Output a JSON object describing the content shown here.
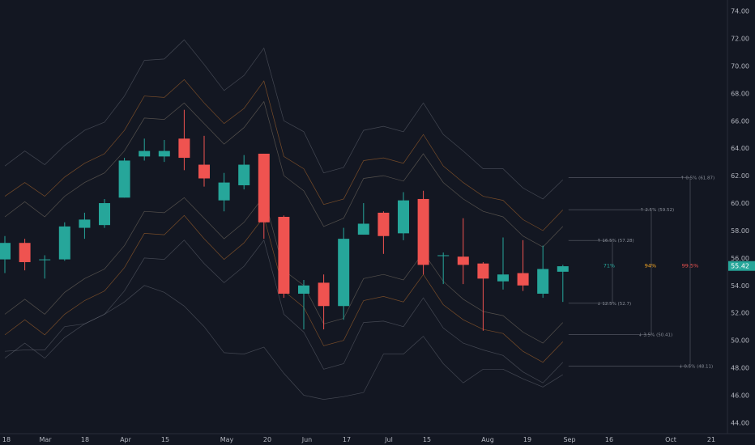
{
  "chart_data": {
    "type": "candlestick",
    "colors": {
      "up": "#26a69a",
      "down": "#ef5350",
      "background": "#131722",
      "band_outer": "#6b6f7a",
      "band_mid": "#c9772e",
      "band_inner": "#8a8070",
      "grid": "#1e222d",
      "axis_text": "#b2b5be",
      "last_price_bg": "#26a69a"
    },
    "y_axis": {
      "range": [
        43.2,
        74.8
      ],
      "ticks": [
        "44.00",
        "46.00",
        "48.00",
        "50.00",
        "52.00",
        "54.00",
        "56.00",
        "58.00",
        "60.00",
        "62.00",
        "64.00",
        "66.00",
        "68.00",
        "70.00",
        "72.00",
        "74.00"
      ]
    },
    "x_axis": {
      "labels": [
        "18",
        "Mar",
        "18",
        "Apr",
        "15",
        "May",
        "20",
        "Jun",
        "17",
        "Jul",
        "15",
        "Aug",
        "19",
        "Sep",
        "16",
        "Oct",
        "21"
      ]
    },
    "last_price": "55.42",
    "candles": [
      {
        "o": 55.9,
        "h": 57.6,
        "l": 54.9,
        "c": 57.1
      },
      {
        "o": 57.1,
        "h": 57.4,
        "l": 55.1,
        "c": 55.7
      },
      {
        "o": 55.9,
        "h": 56.2,
        "l": 54.5,
        "c": 55.9
      },
      {
        "o": 55.9,
        "h": 58.6,
        "l": 55.8,
        "c": 58.3
      },
      {
        "o": 58.2,
        "h": 59.3,
        "l": 57.4,
        "c": 58.8
      },
      {
        "o": 58.4,
        "h": 60.3,
        "l": 58.2,
        "c": 60.0
      },
      {
        "o": 60.4,
        "h": 63.3,
        "l": 60.4,
        "c": 63.1
      },
      {
        "o": 63.4,
        "h": 64.7,
        "l": 63.1,
        "c": 63.8
      },
      {
        "o": 63.4,
        "h": 64.6,
        "l": 63.0,
        "c": 63.8
      },
      {
        "o": 64.7,
        "h": 66.8,
        "l": 62.4,
        "c": 63.3
      },
      {
        "o": 62.8,
        "h": 64.9,
        "l": 61.2,
        "c": 61.8
      },
      {
        "o": 60.2,
        "h": 62.2,
        "l": 59.4,
        "c": 61.5
      },
      {
        "o": 61.3,
        "h": 63.5,
        "l": 61.0,
        "c": 62.8
      },
      {
        "o": 63.6,
        "h": 63.6,
        "l": 57.4,
        "c": 58.6
      },
      {
        "o": 59.0,
        "h": 59.1,
        "l": 53.1,
        "c": 53.4
      },
      {
        "o": 53.4,
        "h": 54.4,
        "l": 50.8,
        "c": 54.0
      },
      {
        "o": 54.2,
        "h": 54.8,
        "l": 50.8,
        "c": 52.5
      },
      {
        "o": 52.5,
        "h": 58.2,
        "l": 51.5,
        "c": 57.4
      },
      {
        "o": 57.7,
        "h": 60.0,
        "l": 57.7,
        "c": 58.5
      },
      {
        "o": 59.3,
        "h": 59.4,
        "l": 56.3,
        "c": 57.6
      },
      {
        "o": 57.8,
        "h": 60.8,
        "l": 57.3,
        "c": 60.2
      },
      {
        "o": 60.3,
        "h": 60.9,
        "l": 54.8,
        "c": 55.5
      },
      {
        "o": 56.2,
        "h": 56.4,
        "l": 54.1,
        "c": 56.2
      },
      {
        "o": 56.1,
        "h": 58.9,
        "l": 54.1,
        "c": 55.5
      },
      {
        "o": 55.6,
        "h": 55.7,
        "l": 50.7,
        "c": 54.5
      },
      {
        "o": 54.3,
        "h": 57.5,
        "l": 53.7,
        "c": 54.8
      },
      {
        "o": 54.9,
        "h": 57.3,
        "l": 53.6,
        "c": 54.0
      },
      {
        "o": 53.4,
        "h": 56.9,
        "l": 53.1,
        "c": 55.2
      },
      {
        "o": 55.0,
        "h": 55.5,
        "l": 52.8,
        "c": 55.4
      }
    ],
    "bands": {
      "outer_upper": [
        62.7,
        63.8,
        62.8,
        64.2,
        65.3,
        65.9,
        67.8,
        70.4,
        70.5,
        71.9,
        70.1,
        68.2,
        69.3,
        71.3,
        66.0,
        65.2,
        62.2,
        62.6,
        65.3,
        65.6,
        65.2,
        67.3,
        65.0,
        63.8,
        62.5,
        62.5,
        61.1,
        60.3,
        61.7
      ],
      "mid_upper": [
        60.5,
        61.5,
        60.5,
        61.9,
        62.9,
        63.6,
        65.3,
        67.8,
        67.7,
        69.0,
        67.3,
        65.8,
        66.9,
        68.9,
        63.4,
        62.5,
        59.9,
        60.3,
        63.1,
        63.3,
        62.9,
        65.0,
        62.7,
        61.5,
        60.5,
        60.2,
        58.8,
        58.0,
        59.5
      ],
      "inner_upper": [
        59.0,
        60.1,
        59.0,
        60.5,
        61.5,
        62.2,
        63.8,
        66.2,
        66.1,
        67.3,
        65.8,
        64.3,
        65.5,
        67.4,
        62.0,
        60.9,
        58.3,
        58.9,
        61.8,
        62.0,
        61.6,
        63.6,
        61.5,
        60.3,
        59.4,
        59.0,
        57.6,
        56.8,
        58.3
      ],
      "inner_lower": [
        51.9,
        53.0,
        51.9,
        53.5,
        54.5,
        55.2,
        56.9,
        59.4,
        59.3,
        60.4,
        58.9,
        57.4,
        58.6,
        60.5,
        55.1,
        54.0,
        51.2,
        51.6,
        54.5,
        54.8,
        54.4,
        56.4,
        54.3,
        53.0,
        52.1,
        51.8,
        50.6,
        49.8,
        51.3
      ],
      "mid_lower": [
        50.4,
        51.5,
        50.4,
        51.9,
        52.9,
        53.6,
        55.3,
        57.8,
        57.7,
        59.1,
        57.4,
        55.9,
        57.1,
        59.0,
        53.6,
        52.4,
        49.6,
        50.0,
        52.9,
        53.2,
        52.8,
        54.8,
        52.6,
        51.5,
        50.8,
        50.5,
        49.2,
        48.4,
        49.9
      ],
      "outer_lower": [
        48.7,
        49.8,
        48.7,
        50.2,
        51.2,
        51.9,
        53.6,
        56.0,
        55.9,
        57.3,
        55.6,
        54.2,
        55.4,
        57.3,
        51.9,
        50.6,
        47.9,
        48.3,
        51.3,
        51.4,
        51.0,
        53.1,
        50.9,
        49.8,
        49.3,
        48.9,
        47.7,
        46.9,
        48.4
      ],
      "outermost_lower": [
        49.2,
        49.3,
        49.3,
        51.0,
        51.2,
        51.9,
        52.8,
        54.0,
        53.5,
        52.5,
        51.0,
        49.1,
        49.0,
        49.5,
        47.6,
        46.0,
        45.7,
        45.9,
        46.2,
        49.0,
        49.0,
        50.3,
        48.3,
        46.9,
        47.9,
        47.9,
        47.2,
        46.6,
        47.5
      ],
      "colors_order": [
        "outer",
        "mid",
        "inner",
        "inner",
        "mid",
        "outer",
        "outer"
      ]
    },
    "projection": {
      "levels": [
        {
          "label": "↑ 0.5% (61.87)",
          "value": 61.87
        },
        {
          "label": "↑ 2.5% (59.52)",
          "value": 59.52
        },
        {
          "label": "↑ 16.5% (57.28)",
          "value": 57.28
        },
        {
          "label": "↓ 12.5% (52.7)",
          "value": 52.7
        },
        {
          "label": "↓ 3.5% (50.41)",
          "value": 50.41
        },
        {
          "label": "↓ 0.5% (48.11)",
          "value": 48.11
        }
      ],
      "probabilities": [
        {
          "label": "71%",
          "color": "#26a69a"
        },
        {
          "label": "94%",
          "color": "#f5a623"
        },
        {
          "label": "99.5%",
          "color": "#ef5350"
        }
      ]
    }
  }
}
